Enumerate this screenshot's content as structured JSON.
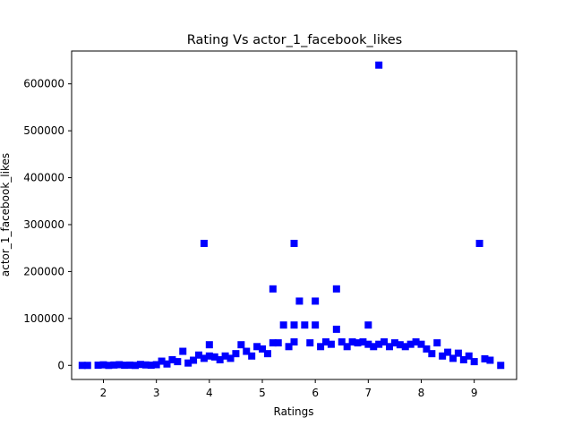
{
  "chart_data": {
    "type": "scatter",
    "title": "Rating Vs actor_1_facebook_likes",
    "xlabel": "Ratings",
    "ylabel": "actor_1_facebook_likes",
    "xlim": [
      1.4,
      9.8
    ],
    "ylim": [
      -30000,
      670000
    ],
    "x_ticks": [
      "2",
      "3",
      "4",
      "5",
      "6",
      "7",
      "8",
      "9"
    ],
    "y_ticks": [
      "0",
      "100000",
      "200000",
      "300000",
      "400000",
      "500000",
      "600000"
    ],
    "marker": "square",
    "marker_color": "#0000ff",
    "grid": false,
    "legend": "none",
    "points": [
      {
        "x": 1.6,
        "y": 0
      },
      {
        "x": 1.7,
        "y": 0
      },
      {
        "x": 1.9,
        "y": 500
      },
      {
        "x": 2.0,
        "y": 1200
      },
      {
        "x": 2.1,
        "y": 0
      },
      {
        "x": 2.2,
        "y": 800
      },
      {
        "x": 2.3,
        "y": 1500
      },
      {
        "x": 2.4,
        "y": 300
      },
      {
        "x": 2.5,
        "y": 600
      },
      {
        "x": 2.6,
        "y": 0
      },
      {
        "x": 2.7,
        "y": 2000
      },
      {
        "x": 2.8,
        "y": 1000
      },
      {
        "x": 2.9,
        "y": 400
      },
      {
        "x": 3.0,
        "y": 1500
      },
      {
        "x": 3.1,
        "y": 9000
      },
      {
        "x": 3.2,
        "y": 3000
      },
      {
        "x": 3.3,
        "y": 12000
      },
      {
        "x": 3.4,
        "y": 8000
      },
      {
        "x": 3.5,
        "y": 30000
      },
      {
        "x": 3.6,
        "y": 5000
      },
      {
        "x": 3.7,
        "y": 11000
      },
      {
        "x": 3.8,
        "y": 22000
      },
      {
        "x": 3.9,
        "y": 260000
      },
      {
        "x": 3.9,
        "y": 15000
      },
      {
        "x": 4.0,
        "y": 44000
      },
      {
        "x": 4.0,
        "y": 20000
      },
      {
        "x": 4.1,
        "y": 18000
      },
      {
        "x": 4.2,
        "y": 12000
      },
      {
        "x": 4.3,
        "y": 20000
      },
      {
        "x": 4.4,
        "y": 15000
      },
      {
        "x": 4.5,
        "y": 25000
      },
      {
        "x": 4.6,
        "y": 44000
      },
      {
        "x": 4.7,
        "y": 30000
      },
      {
        "x": 4.8,
        "y": 20000
      },
      {
        "x": 4.9,
        "y": 40000
      },
      {
        "x": 5.0,
        "y": 35000
      },
      {
        "x": 5.1,
        "y": 25000
      },
      {
        "x": 5.2,
        "y": 163000
      },
      {
        "x": 5.2,
        "y": 48000
      },
      {
        "x": 5.3,
        "y": 48000
      },
      {
        "x": 5.4,
        "y": 86000
      },
      {
        "x": 5.5,
        "y": 40000
      },
      {
        "x": 5.6,
        "y": 260000
      },
      {
        "x": 5.6,
        "y": 86000
      },
      {
        "x": 5.6,
        "y": 50000
      },
      {
        "x": 5.7,
        "y": 137000
      },
      {
        "x": 5.8,
        "y": 86000
      },
      {
        "x": 5.9,
        "y": 48000
      },
      {
        "x": 6.0,
        "y": 137000
      },
      {
        "x": 6.0,
        "y": 86000
      },
      {
        "x": 6.1,
        "y": 40000
      },
      {
        "x": 6.2,
        "y": 50000
      },
      {
        "x": 6.3,
        "y": 45000
      },
      {
        "x": 6.4,
        "y": 163000
      },
      {
        "x": 6.4,
        "y": 77000
      },
      {
        "x": 6.5,
        "y": 50000
      },
      {
        "x": 6.6,
        "y": 40000
      },
      {
        "x": 6.7,
        "y": 50000
      },
      {
        "x": 6.8,
        "y": 48000
      },
      {
        "x": 6.9,
        "y": 50000
      },
      {
        "x": 7.0,
        "y": 86000
      },
      {
        "x": 7.0,
        "y": 45000
      },
      {
        "x": 7.1,
        "y": 40000
      },
      {
        "x": 7.2,
        "y": 640000
      },
      {
        "x": 7.2,
        "y": 45000
      },
      {
        "x": 7.3,
        "y": 50000
      },
      {
        "x": 7.4,
        "y": 40000
      },
      {
        "x": 7.5,
        "y": 48000
      },
      {
        "x": 7.6,
        "y": 44000
      },
      {
        "x": 7.7,
        "y": 40000
      },
      {
        "x": 7.8,
        "y": 45000
      },
      {
        "x": 7.9,
        "y": 50000
      },
      {
        "x": 8.0,
        "y": 45000
      },
      {
        "x": 8.1,
        "y": 35000
      },
      {
        "x": 8.2,
        "y": 25000
      },
      {
        "x": 8.3,
        "y": 48000
      },
      {
        "x": 8.4,
        "y": 20000
      },
      {
        "x": 8.5,
        "y": 28000
      },
      {
        "x": 8.6,
        "y": 15000
      },
      {
        "x": 8.7,
        "y": 26000
      },
      {
        "x": 8.8,
        "y": 12000
      },
      {
        "x": 8.9,
        "y": 20000
      },
      {
        "x": 9.0,
        "y": 8000
      },
      {
        "x": 9.1,
        "y": 260000
      },
      {
        "x": 9.2,
        "y": 14000
      },
      {
        "x": 9.3,
        "y": 11000
      },
      {
        "x": 9.5,
        "y": 0
      }
    ]
  }
}
